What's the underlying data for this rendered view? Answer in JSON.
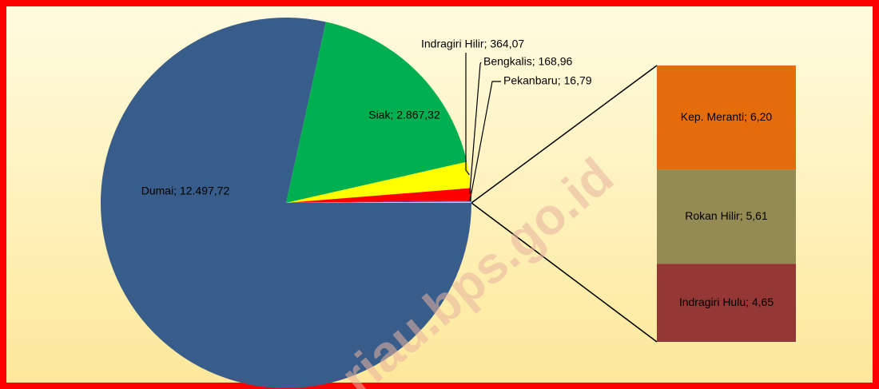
{
  "chart_data": {
    "type": "pie-of-bar",
    "pie": {
      "values": [
        12497.72,
        2867.32,
        364.07,
        168.96,
        16.79
      ],
      "value_labels": [
        "Dumai; 12.497,72",
        "Siak; 2.867,32",
        "Indragiri Hilir; 364,07",
        "Bengkalis; 168,96",
        "Pekanbaru; 16,79"
      ],
      "colors": [
        "#385d8a",
        "#00b050",
        "#ffff00",
        "#ff0000",
        "#7030a0"
      ]
    },
    "bar": {
      "values": [
        6.2,
        5.61,
        4.65
      ],
      "value_labels": [
        "Kep. Meranti; 6,20",
        "Rokan Hilir; 5,61",
        "Indragiri Hulu; 4,65"
      ],
      "colors": [
        "#e46c0a",
        "#948a54",
        "#953735"
      ]
    },
    "other_color": "#b9cde5",
    "watermark": "riau.bps.go.id"
  }
}
